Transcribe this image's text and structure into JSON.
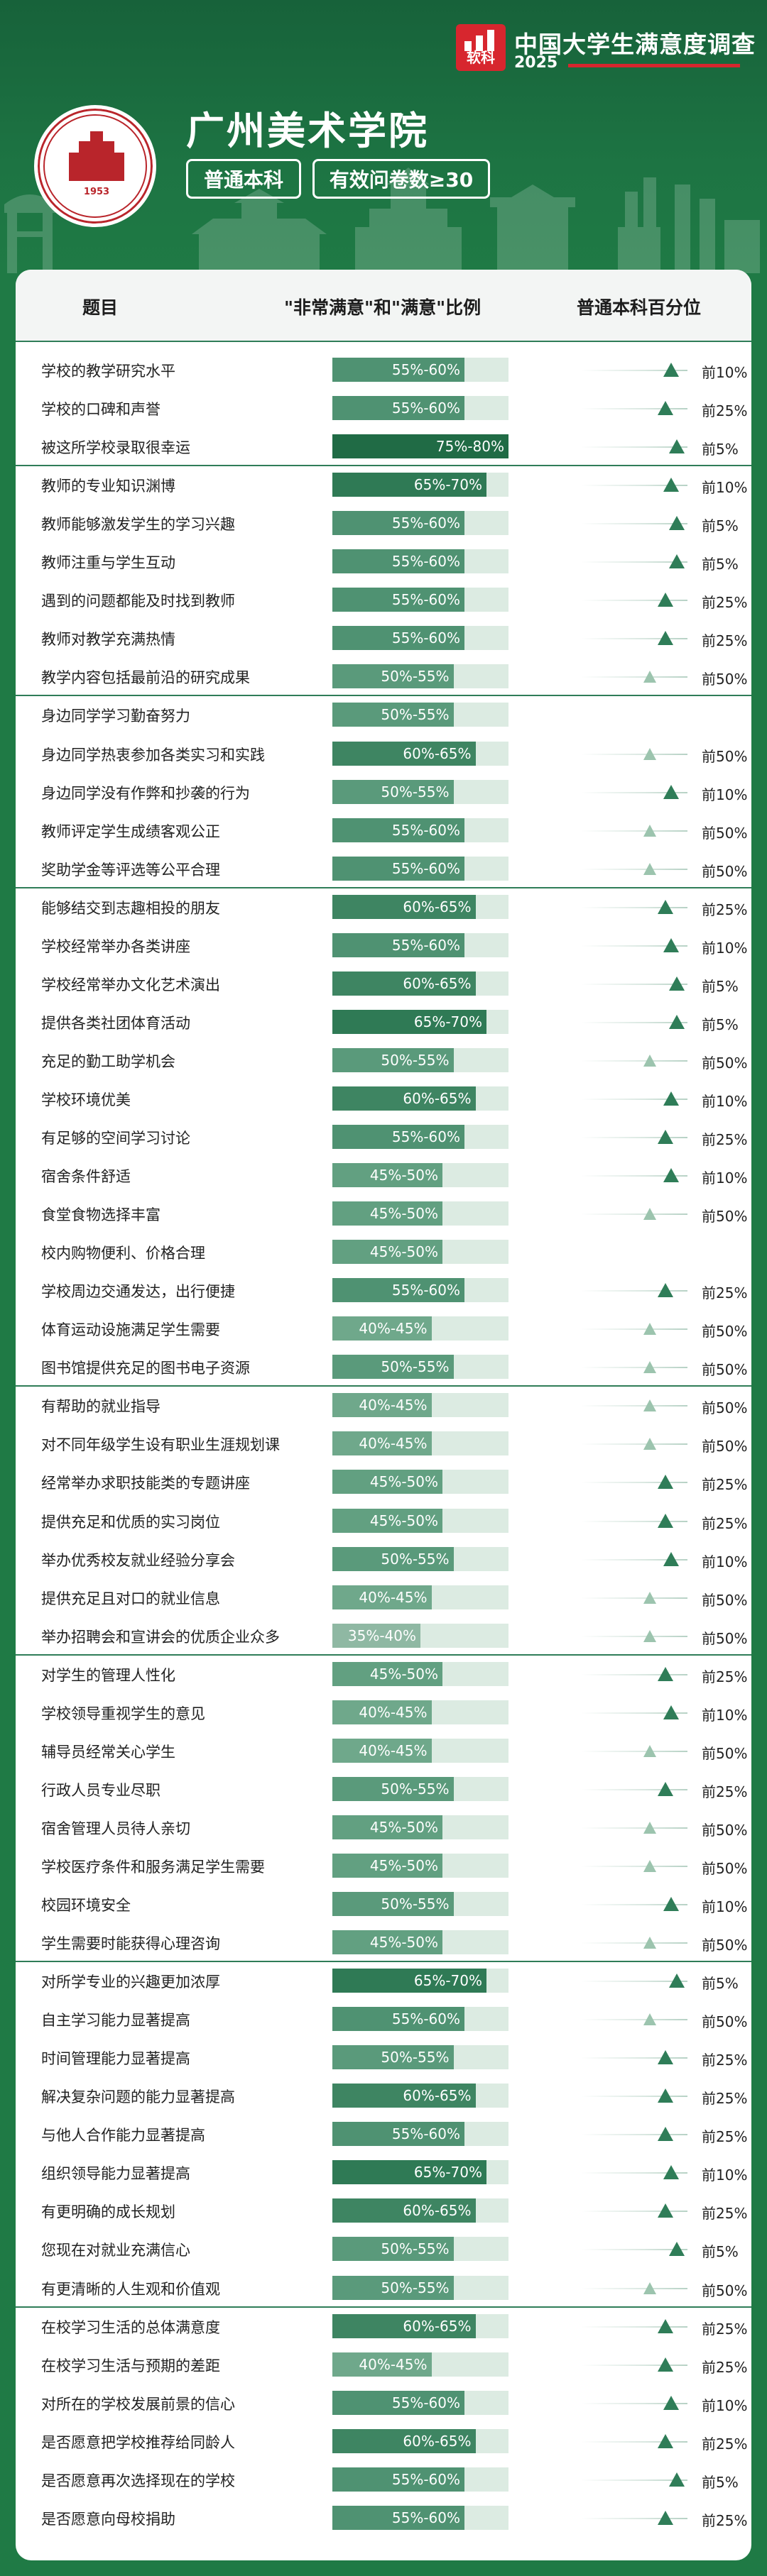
{
  "brand": {
    "logo_text": "软科",
    "title": "中国大学生满意度调查",
    "year": "2025"
  },
  "seal": {
    "year": "1953"
  },
  "school": {
    "name": "广州美术学院",
    "tag_level": "普通本科",
    "tag_sample": "有效问卷数≥30"
  },
  "table": {
    "headers": {
      "topic": "题目",
      "ratio": "\"非常满意\"和\"满意\"比例",
      "rank": "普通本科百分位"
    },
    "groups": [
      [
        {
          "topic": "学校的教学研究水平",
          "ratio": "55%-60%",
          "rank": "前10%"
        },
        {
          "topic": "学校的口碑和声誉",
          "ratio": "55%-60%",
          "rank": "前25%"
        },
        {
          "topic": "被这所学校录取很幸运",
          "ratio": "75%-80%",
          "rank": "前5%"
        }
      ],
      [
        {
          "topic": "教师的专业知识渊博",
          "ratio": "65%-70%",
          "rank": "前10%"
        },
        {
          "topic": "教师能够激发学生的学习兴趣",
          "ratio": "55%-60%",
          "rank": "前5%"
        },
        {
          "topic": "教师注重与学生互动",
          "ratio": "55%-60%",
          "rank": "前5%"
        },
        {
          "topic": "遇到的问题都能及时找到教师",
          "ratio": "55%-60%",
          "rank": "前25%"
        },
        {
          "topic": "教师对教学充满热情",
          "ratio": "55%-60%",
          "rank": "前25%"
        },
        {
          "topic": "教学内容包括最前沿的研究成果",
          "ratio": "50%-55%",
          "rank": "前50%"
        }
      ],
      [
        {
          "topic": "身边同学学习勤奋努力",
          "ratio": "50%-55%",
          "rank": ""
        },
        {
          "topic": "身边同学热衷参加各类实习和实践",
          "ratio": "60%-65%",
          "rank": "前50%"
        },
        {
          "topic": "身边同学没有作弊和抄袭的行为",
          "ratio": "50%-55%",
          "rank": "前10%"
        },
        {
          "topic": "教师评定学生成绩客观公正",
          "ratio": "55%-60%",
          "rank": "前50%"
        },
        {
          "topic": "奖助学金等评选等公平合理",
          "ratio": "55%-60%",
          "rank": "前50%"
        }
      ],
      [
        {
          "topic": "能够结交到志趣相投的朋友",
          "ratio": "60%-65%",
          "rank": "前25%"
        },
        {
          "topic": "学校经常举办各类讲座",
          "ratio": "55%-60%",
          "rank": "前10%"
        },
        {
          "topic": "学校经常举办文化艺术演出",
          "ratio": "60%-65%",
          "rank": "前5%"
        },
        {
          "topic": "提供各类社团体育活动",
          "ratio": "65%-70%",
          "rank": "前5%"
        },
        {
          "topic": "充足的勤工助学机会",
          "ratio": "50%-55%",
          "rank": "前50%"
        },
        {
          "topic": "学校环境优美",
          "ratio": "60%-65%",
          "rank": "前10%"
        },
        {
          "topic": "有足够的空间学习讨论",
          "ratio": "55%-60%",
          "rank": "前25%"
        },
        {
          "topic": "宿舍条件舒适",
          "ratio": "45%-50%",
          "rank": "前10%"
        },
        {
          "topic": "食堂食物选择丰富",
          "ratio": "45%-50%",
          "rank": "前50%"
        },
        {
          "topic": "校内购物便利、价格合理",
          "ratio": "45%-50%",
          "rank": ""
        },
        {
          "topic": "学校周边交通发达，出行便捷",
          "ratio": "55%-60%",
          "rank": "前25%"
        },
        {
          "topic": "体育运动设施满足学生需要",
          "ratio": "40%-45%",
          "rank": "前50%"
        },
        {
          "topic": "图书馆提供充足的图书电子资源",
          "ratio": "50%-55%",
          "rank": "前50%"
        }
      ],
      [
        {
          "topic": "有帮助的就业指导",
          "ratio": "40%-45%",
          "rank": "前50%"
        },
        {
          "topic": "对不同年级学生设有职业生涯规划课",
          "ratio": "40%-45%",
          "rank": "前50%"
        },
        {
          "topic": "经常举办求职技能类的专题讲座",
          "ratio": "45%-50%",
          "rank": "前25%"
        },
        {
          "topic": "提供充足和优质的实习岗位",
          "ratio": "45%-50%",
          "rank": "前25%"
        },
        {
          "topic": "举办优秀校友就业经验分享会",
          "ratio": "50%-55%",
          "rank": "前10%"
        },
        {
          "topic": "提供充足且对口的就业信息",
          "ratio": "40%-45%",
          "rank": "前50%"
        },
        {
          "topic": "举办招聘会和宣讲会的优质企业众多",
          "ratio": "35%-40%",
          "rank": "前50%"
        }
      ],
      [
        {
          "topic": "对学生的管理人性化",
          "ratio": "45%-50%",
          "rank": "前25%"
        },
        {
          "topic": "学校领导重视学生的意见",
          "ratio": "40%-45%",
          "rank": "前10%"
        },
        {
          "topic": "辅导员经常关心学生",
          "ratio": "40%-45%",
          "rank": "前50%"
        },
        {
          "topic": "行政人员专业尽职",
          "ratio": "50%-55%",
          "rank": "前25%"
        },
        {
          "topic": "宿舍管理人员待人亲切",
          "ratio": "45%-50%",
          "rank": "前50%"
        },
        {
          "topic": "学校医疗条件和服务满足学生需要",
          "ratio": "45%-50%",
          "rank": "前50%"
        },
        {
          "topic": "校园环境安全",
          "ratio": "50%-55%",
          "rank": "前10%"
        },
        {
          "topic": "学生需要时能获得心理咨询",
          "ratio": "45%-50%",
          "rank": "前50%"
        }
      ],
      [
        {
          "topic": "对所学专业的兴趣更加浓厚",
          "ratio": "65%-70%",
          "rank": "前5%"
        },
        {
          "topic": "自主学习能力显著提高",
          "ratio": "55%-60%",
          "rank": "前50%"
        },
        {
          "topic": "时间管理能力显著提高",
          "ratio": "50%-55%",
          "rank": "前25%"
        },
        {
          "topic": "解决复杂问题的能力显著提高",
          "ratio": "60%-65%",
          "rank": "前25%"
        },
        {
          "topic": "与他人合作能力显著提高",
          "ratio": "55%-60%",
          "rank": "前25%"
        },
        {
          "topic": "组织领导能力显著提高",
          "ratio": "65%-70%",
          "rank": "前10%"
        },
        {
          "topic": "有更明确的成长规划",
          "ratio": "60%-65%",
          "rank": "前25%"
        },
        {
          "topic": "您现在对就业充满信心",
          "ratio": "50%-55%",
          "rank": "前5%"
        },
        {
          "topic": "有更清晰的人生观和价值观",
          "ratio": "50%-55%",
          "rank": "前50%"
        }
      ],
      [
        {
          "topic": "在校学习生活的总体满意度",
          "ratio": "60%-65%",
          "rank": "前25%"
        },
        {
          "topic": "在校学习生活与预期的差距",
          "ratio": "40%-45%",
          "rank": "前25%"
        },
        {
          "topic": "对所在的学校发展前景的信心",
          "ratio": "55%-60%",
          "rank": "前10%"
        },
        {
          "topic": "是否愿意把学校推荐给同龄人",
          "ratio": "60%-65%",
          "rank": "前25%"
        },
        {
          "topic": "是否愿意再次选择现在的学校",
          "ratio": "55%-60%",
          "rank": "前5%"
        },
        {
          "topic": "是否愿意向母校捐助",
          "ratio": "55%-60%",
          "rank": "前25%"
        }
      ]
    ]
  },
  "colors": {
    "band_35": "#8fb8a3",
    "band_40": "#6fa88b",
    "band_45": "#62a081",
    "band_50": "#5a9a7b",
    "band_55": "#4f9272",
    "band_60": "#3e8562",
    "band_65": "#2f7a55",
    "band_75": "#206b45",
    "rank_top": "#2f7d58",
    "rank_50": "#9cc4ae"
  }
}
